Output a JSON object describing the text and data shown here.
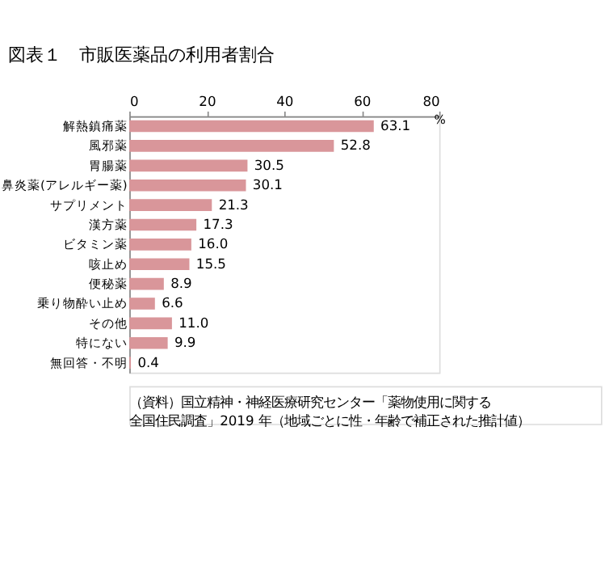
{
  "chart_data": {
    "type": "bar",
    "orientation": "horizontal",
    "title": "図表１　市販医薬品の利用者割合",
    "xlabel": "%",
    "categories": [
      "解熱鎮痛薬",
      "風邪薬",
      "胃腸薬",
      "鼻炎薬(アレルギー薬)",
      "サプリメント",
      "漢方薬",
      "ビタミン薬",
      "咳止め",
      "便秘薬",
      "乗り物酔い止め",
      "その他",
      "特にない",
      "無回答・不明"
    ],
    "values": [
      63.1,
      52.8,
      30.5,
      30.1,
      21.3,
      17.3,
      16.0,
      15.5,
      8.9,
      6.6,
      11.0,
      9.9,
      0.4
    ],
    "value_labels": [
      "63.1",
      "52.8",
      "30.5",
      "30.1",
      "21.3",
      "17.3",
      "16.0",
      "15.5",
      "8.9",
      "6.6",
      "11.0",
      "9.9",
      "0.4"
    ],
    "color": "#d9969a",
    "xlim": [
      0,
      80
    ],
    "xticks": [
      0,
      20,
      40,
      60,
      80
    ],
    "grid": false,
    "annotations": [
      "（資料）国立精神・神経医療研究センター「薬物使用に関する",
      "全国住民調査」2019 年（地域ごとに性・年齢で補正された推計値）"
    ]
  }
}
